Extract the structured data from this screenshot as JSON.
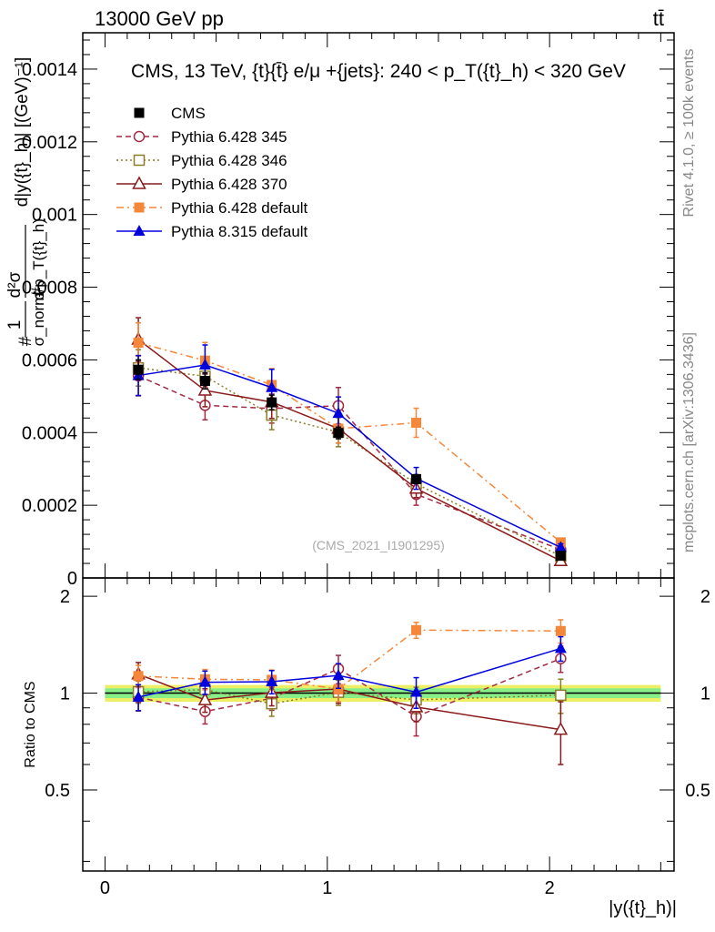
{
  "header": {
    "energy_label": "13000 GeV pp",
    "process_label": "tt̄",
    "side_rivet": "Rivet 4.1.0, ≥ 100k events",
    "side_mcplots": "mcplots.cern.ch [arXiv:1306.3436]"
  },
  "chart_data": [
    {
      "type": "line",
      "title": "CMS, 13 TeV, {t}{t̄} e/μ +{jets}: 240 <  p_T({t}_h) < 320 GeV",
      "watermark": "(CMS_2021_I1901295)",
      "ylabel": "1/σ_norm d²σ / d p_T({t}_h) d|y({t}_h)| [(GeV)⁻¹]",
      "ylabel_parts": {
        "prefix": "#",
        "one": "1",
        "sigma_norm": "σ_norm",
        "numer": "d²σ",
        "denom_lead": "#",
        "denom": "d p_T({t}_h)",
        "tail": "d|y({t}_h)| [(GeV)⁻¹]"
      },
      "xlim": [
        -0.1,
        2.56
      ],
      "ylim": [
        0,
        0.0015
      ],
      "yticks": [
        0,
        0.0002,
        0.0004,
        0.0006,
        0.0008,
        0.001,
        0.0012,
        0.0014
      ],
      "ytick_labels": [
        "0",
        "0.0002",
        "0.0004",
        "0.0006",
        "0.0008",
        "0.001",
        "0.0012",
        "0.0014"
      ],
      "x": [
        0.15,
        0.45,
        0.75,
        1.05,
        1.4,
        2.05
      ],
      "series": [
        {
          "name": "CMS",
          "color": "#000000",
          "marker": "square-filled",
          "dash": "none",
          "values": [
            0.000573,
            0.000542,
            0.000483,
            0.000399,
            0.000272,
            6.1e-05
          ],
          "errors": [
            2.7e-05,
            2.2e-05,
            2e-05,
            1.6e-05,
            1.2e-05,
            4e-06
          ]
        },
        {
          "name": "Pythia 6.428 345",
          "color": "#a32a42",
          "marker": "circle-open",
          "dash": "dashed",
          "values": [
            0.000556,
            0.000475,
            0.000466,
            0.000474,
            0.00023,
            7.8e-05
          ],
          "errors": [
            5.5e-05,
            4e-05,
            4e-05,
            5e-05,
            3e-05,
            1e-05
          ]
        },
        {
          "name": "Pythia 6.428 346",
          "color": "#8b7d2a",
          "marker": "square-open",
          "dash": "dotted",
          "values": [
            0.000578,
            0.000555,
            0.000448,
            0.000401,
            0.000259,
            6e-05
          ],
          "errors": [
            5e-05,
            4e-05,
            4e-05,
            4e-05,
            2.5e-05,
            1e-05
          ]
        },
        {
          "name": "Pythia 6.428 370",
          "color": "#8b1a1a",
          "marker": "triangle-open",
          "dash": "solid",
          "values": [
            0.000656,
            0.000516,
            0.000484,
            0.000411,
            0.000246,
            4.7e-05
          ],
          "errors": [
            6e-05,
            4.5e-05,
            4.5e-05,
            4e-05,
            2.5e-05,
            1e-05
          ]
        },
        {
          "name": "Pythia 6.428 default",
          "color": "#f5873a",
          "marker": "square-filled",
          "dash": "dashdot",
          "values": [
            0.000647,
            0.000598,
            0.000531,
            0.000411,
            0.000427,
            9.8e-05
          ],
          "errors": [
            5.5e-05,
            5e-05,
            4.5e-05,
            4e-05,
            4e-05,
            1e-05
          ]
        },
        {
          "name": "Pythia 8.315 default",
          "color": "#0000dd",
          "marker": "triangle-filled",
          "dash": "solid",
          "values": [
            0.000557,
            0.000586,
            0.000524,
            0.000453,
            0.000274,
            8.4e-05
          ],
          "errors": [
            5.5e-05,
            5.5e-05,
            5e-05,
            4.5e-05,
            3e-05,
            1e-05
          ]
        }
      ]
    },
    {
      "type": "line",
      "ylabel": "Ratio to CMS",
      "xlabel": "|y({t}_h)|",
      "xlim": [
        -0.1,
        2.56
      ],
      "ylim": [
        0.28,
        2.28
      ],
      "yticks": [
        0.5,
        1,
        2
      ],
      "ytick_labels": [
        "0.5",
        "1",
        "2"
      ],
      "xticks": [
        0,
        1,
        2
      ],
      "xtick_labels": [
        "0",
        "1",
        "2"
      ],
      "band": {
        "inner": [
          0.965,
          1.035
        ],
        "outer": [
          0.94,
          1.06
        ],
        "inner_color": "#88ee88",
        "outer_color": "#eeee66"
      },
      "x": [
        0.15,
        0.45,
        0.75,
        1.05,
        1.4,
        2.05
      ],
      "series": [
        {
          "name": "Pythia 6.428 345",
          "values": [
            0.97,
            0.877,
            0.964,
            1.19,
            0.846,
            1.28
          ],
          "errors": [
            0.09,
            0.075,
            0.08,
            0.12,
            0.11,
            0.12
          ]
        },
        {
          "name": "Pythia 6.428 346",
          "values": [
            1.01,
            1.025,
            0.927,
            1.006,
            0.953,
            0.985
          ],
          "errors": [
            0.08,
            0.07,
            0.08,
            0.09,
            0.09,
            0.12
          ]
        },
        {
          "name": "Pythia 6.428 370",
          "values": [
            1.145,
            0.952,
            1.003,
            1.03,
            0.905,
            0.77
          ],
          "errors": [
            0.1,
            0.08,
            0.09,
            0.1,
            0.09,
            0.17
          ]
        },
        {
          "name": "Pythia 6.428 default",
          "values": [
            1.13,
            1.104,
            1.1,
            1.03,
            1.57,
            1.56
          ],
          "errors": [
            0.09,
            0.08,
            0.08,
            0.09,
            0.09,
            0.13
          ]
        },
        {
          "name": "Pythia 8.315 default",
          "values": [
            0.972,
            1.081,
            1.085,
            1.135,
            1.007,
            1.377
          ],
          "errors": [
            0.09,
            0.09,
            0.09,
            0.1,
            0.11,
            0.12
          ]
        }
      ]
    }
  ]
}
